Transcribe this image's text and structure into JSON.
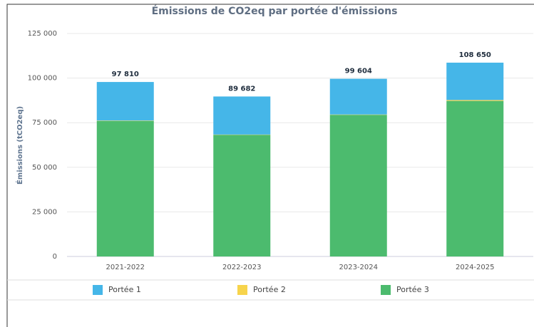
{
  "chart_data": {
    "type": "stacked_bar",
    "title": "Émissions de CO2eq par portée d'émissions",
    "y_label": "Émissions (tCO2eq)",
    "categories": [
      "2021-2022",
      "2022-2023",
      "2023-2024",
      "2024-2025"
    ],
    "series": [
      {
        "name": "Portée 1",
        "color": "#45b6e8",
        "values": [
          21610,
          21332,
          20024,
          20950
        ]
      },
      {
        "name": "Portée 2",
        "color": "#f7d44c",
        "values": [
          200,
          150,
          180,
          500
        ]
      },
      {
        "name": "Portée 3",
        "color": "#4cbb6e",
        "values": [
          76000,
          68200,
          79400,
          87200
        ]
      }
    ],
    "stack_order": [
      2,
      1,
      0
    ],
    "totals": {
      "values": [
        97810,
        89682,
        99604,
        108650
      ],
      "value_labels": [
        "97 810",
        "89 682",
        "99 604",
        "108 650"
      ]
    },
    "ylim": [
      0,
      125000
    ],
    "yticks": [
      0,
      {
        "value": 25000,
        "label": "25 000"
      },
      {
        "value": 50000,
        "label": "50 000"
      },
      {
        "value": 75000,
        "label": "75 000"
      },
      {
        "value": 100000,
        "label": "100 000"
      },
      {
        "value": 125000,
        "label": "125 000"
      }
    ],
    "grid": true,
    "legend": "bottom"
  }
}
